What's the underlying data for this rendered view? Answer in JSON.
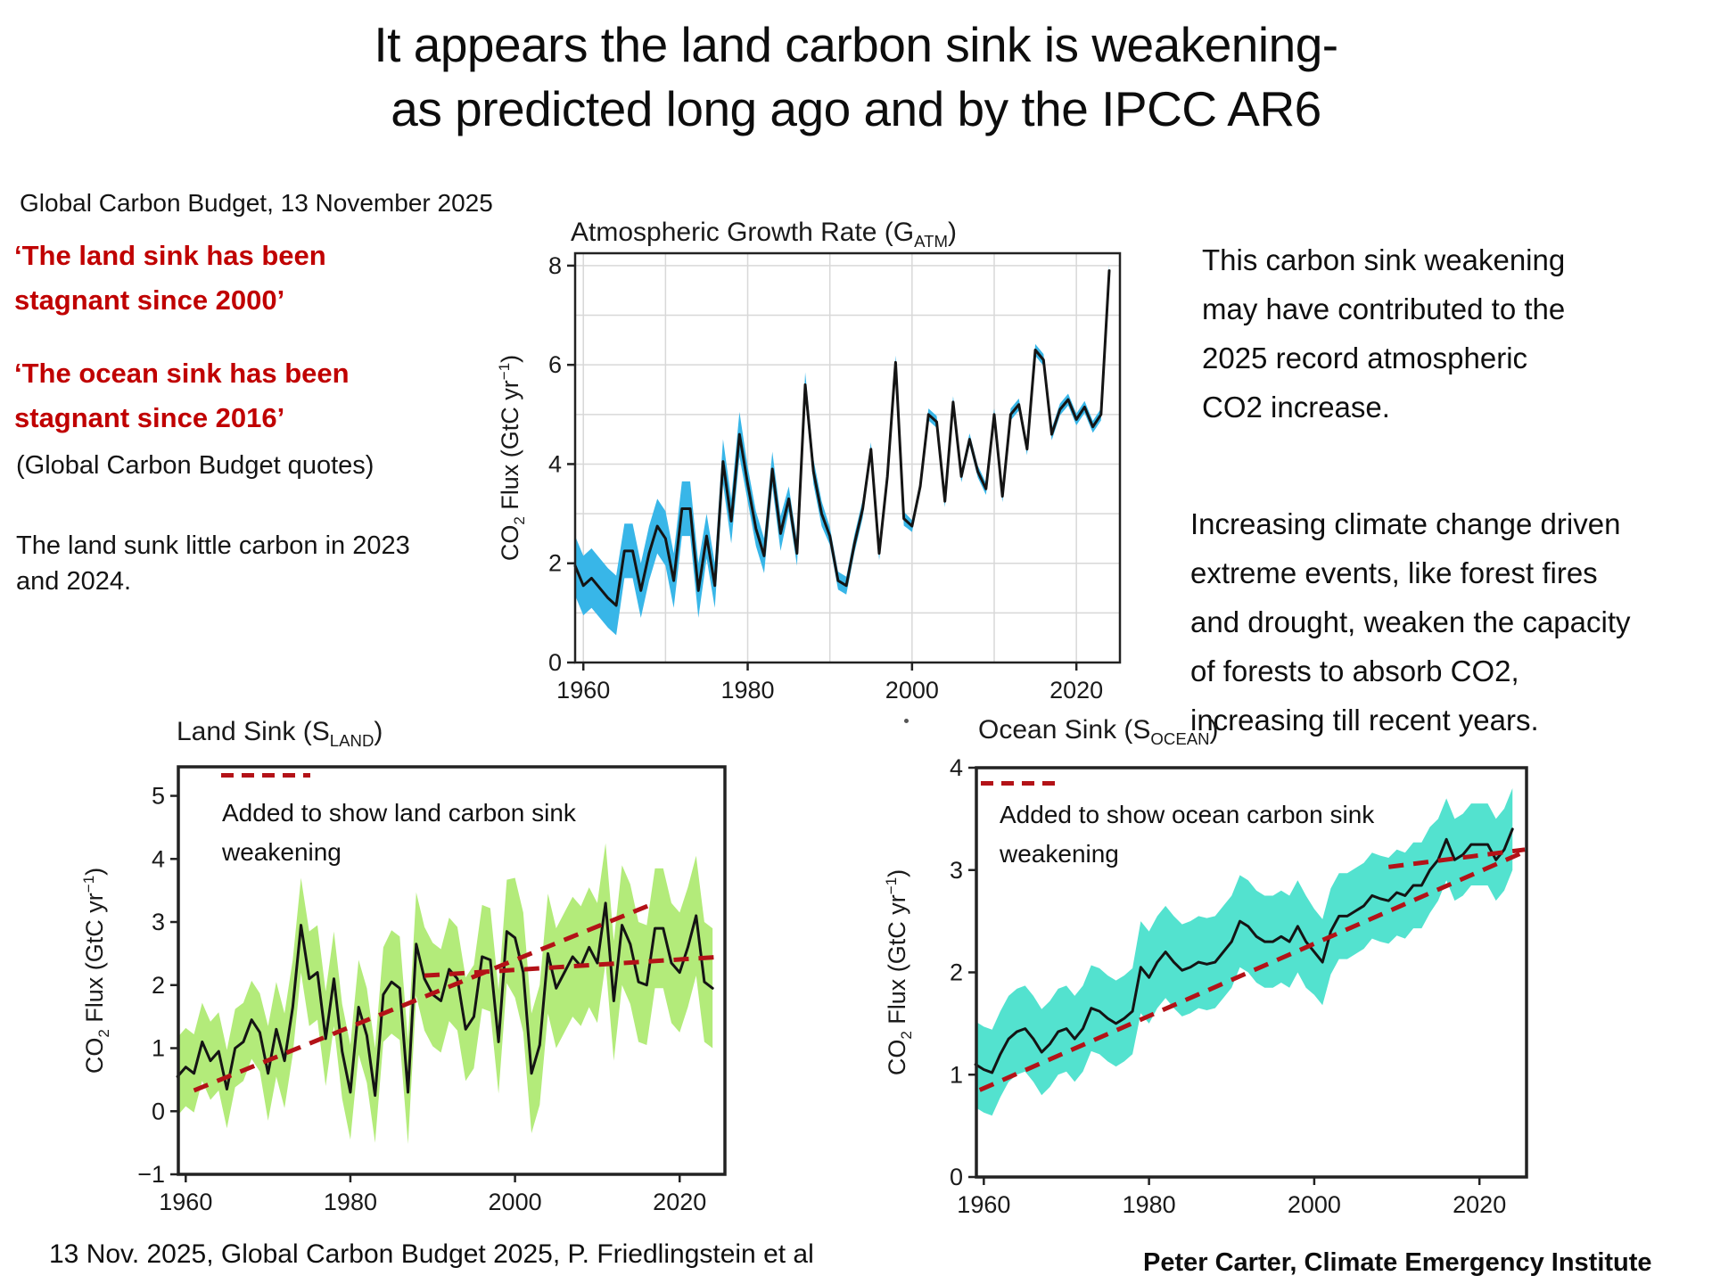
{
  "title": "It appears the land carbon sink is weakening-\nas predicted long ago and by the IPCC AR6",
  "left_column": {
    "source": "Global Carbon Budget, 13 November 2025",
    "quote_land": "‘The land sink has been\n stagnant since 2000’",
    "quote_ocean": "‘The ocean sink has been\nstagnant since 2016’",
    "quotes_note": "(Global Carbon Budget quotes)",
    "land_note": "The land sunk little carbon in 2023\nand 2024."
  },
  "right_column": {
    "para1": "This carbon sink weakening\nmay have contributed to the\n2025 record atmospheric\nCO2 increase.",
    "para2": "Increasing climate change driven\nextreme events, like forest fires\nand drought, weaken the capacity\nof forests to absorb CO2,\nincreasing till recent years."
  },
  "footer": {
    "source": "13 Nov. 2025, Global Carbon Budget 2025, P. Friedlingstein et al",
    "credit": "Peter Carter, Climate Emergency Institute"
  },
  "colors": {
    "quote_red": "#c00000",
    "trend_red": "#b31217",
    "line": "#141414",
    "gatm_band": "#38b6e8",
    "land_band": "#b3eb7a",
    "ocean_band": "#53e2cf",
    "grid": "#d8d8d8",
    "axis": "#222222"
  },
  "chart_data": [
    {
      "id": "gatm",
      "type": "line",
      "title_parts": [
        {
          "t": "Atmospheric Growth Rate (G"
        },
        {
          "t": "ATM",
          "sub": true
        },
        {
          "t": ")"
        }
      ],
      "ylabel_parts": [
        {
          "t": "CO"
        },
        {
          "t": "2",
          "sub": true
        },
        {
          "t": " Flux (GtC yr"
        },
        {
          "t": "−1",
          "sup": true
        },
        {
          "t": ")"
        }
      ],
      "x_ticks": [
        1960,
        1980,
        2000,
        2020
      ],
      "y_ticks": [
        0,
        2,
        4,
        6,
        8
      ],
      "x_range": [
        1959,
        2025.3
      ],
      "y_range": [
        0,
        8.25
      ],
      "grid": true,
      "band_color": "#38b6e8",
      "year_start": 1959,
      "values": [
        1.95,
        1.55,
        1.7,
        1.5,
        1.3,
        1.15,
        2.25,
        2.25,
        1.45,
        2.2,
        2.75,
        2.5,
        1.65,
        3.1,
        3.1,
        1.45,
        2.55,
        1.55,
        4.05,
        2.85,
        4.6,
        3.6,
        2.7,
        2.15,
        3.9,
        2.6,
        3.3,
        2.2,
        5.6,
        3.85,
        3.0,
        2.55,
        1.65,
        1.55,
        2.4,
        3.1,
        4.3,
        2.2,
        3.75,
        6.05,
        2.9,
        2.75,
        3.55,
        5.0,
        4.85,
        3.25,
        5.25,
        3.75,
        4.5,
        3.85,
        3.5,
        5.0,
        3.35,
        5.0,
        5.2,
        4.3,
        6.3,
        6.1,
        4.6,
        5.1,
        5.3,
        4.9,
        5.15,
        4.75,
        5.0,
        7.9
      ],
      "band": [
        0.6,
        0.6,
        0.6,
        0.6,
        0.6,
        0.6,
        0.55,
        0.55,
        0.55,
        0.55,
        0.55,
        0.55,
        0.55,
        0.55,
        0.55,
        0.55,
        0.45,
        0.45,
        0.45,
        0.45,
        0.45,
        0.35,
        0.35,
        0.35,
        0.35,
        0.35,
        0.25,
        0.25,
        0.25,
        0.25,
        0.25,
        0.18,
        0.18,
        0.18,
        0.18,
        0.18,
        0.14,
        0.14,
        0.14,
        0.14,
        0.14,
        0.12,
        0.12,
        0.12,
        0.12,
        0.12,
        0.12,
        0.12,
        0.12,
        0.12,
        0.12,
        0.12,
        0.12,
        0.12,
        0.12,
        0.12,
        0.12,
        0.12,
        0.12,
        0.12,
        0.12,
        0.12,
        0.12,
        0.12,
        0.12,
        0.12
      ],
      "trend_lines": [],
      "annotation": null
    },
    {
      "id": "land",
      "type": "line",
      "title_parts": [
        {
          "t": "Land Sink (S"
        },
        {
          "t": "LAND",
          "sub": true
        },
        {
          "t": ")"
        }
      ],
      "ylabel_parts": [
        {
          "t": "CO"
        },
        {
          "t": "2",
          "sub": true
        },
        {
          "t": " Flux (GtC yr"
        },
        {
          "t": "−1",
          "sup": true
        },
        {
          "t": ")"
        }
      ],
      "x_ticks": [
        1960,
        1980,
        2000,
        2020
      ],
      "y_ticks": [
        -1,
        0,
        1,
        2,
        3,
        4,
        5
      ],
      "x_range": [
        1959.1,
        2025.5
      ],
      "y_range": [
        -1,
        5.46
      ],
      "grid": false,
      "band_color": "#b3eb7a",
      "year_start": 1959,
      "values": [
        0.55,
        0.7,
        0.6,
        1.1,
        0.8,
        0.95,
        0.35,
        1.0,
        1.1,
        1.45,
        1.25,
        0.6,
        1.3,
        0.8,
        1.65,
        2.95,
        2.1,
        2.2,
        1.15,
        2.1,
        0.95,
        0.3,
        1.65,
        1.2,
        0.25,
        1.85,
        2.05,
        1.95,
        0.3,
        2.65,
        2.1,
        1.85,
        1.75,
        2.25,
        2.1,
        1.3,
        1.5,
        2.45,
        2.4,
        1.1,
        2.85,
        2.75,
        2.2,
        0.6,
        1.05,
        2.5,
        1.95,
        2.2,
        2.45,
        2.3,
        2.6,
        2.35,
        3.3,
        1.75,
        2.95,
        2.65,
        2.05,
        2.0,
        2.9,
        2.9,
        2.35,
        2.2,
        2.6,
        3.1,
        2.05,
        1.95
      ],
      "band": [
        0.62,
        0.62,
        0.62,
        0.62,
        0.62,
        0.62,
        0.62,
        0.62,
        0.62,
        0.62,
        0.62,
        0.75,
        0.75,
        0.75,
        0.75,
        0.75,
        0.75,
        0.75,
        0.75,
        0.75,
        0.75,
        0.75,
        0.75,
        0.75,
        0.75,
        0.75,
        0.82,
        0.82,
        0.82,
        0.82,
        0.82,
        0.82,
        0.82,
        0.82,
        0.82,
        0.82,
        0.82,
        0.82,
        0.82,
        0.82,
        0.82,
        0.95,
        0.95,
        0.95,
        0.95,
        0.95,
        0.95,
        0.95,
        0.95,
        0.95,
        0.95,
        0.95,
        0.95,
        0.95,
        0.95,
        0.95,
        0.95,
        0.95,
        0.95,
        0.95,
        0.95,
        0.95,
        0.95,
        0.95,
        0.95,
        0.95
      ],
      "trend_lines": [
        {
          "from": [
            1961,
            0.33
          ],
          "to": [
            2017,
            3.3
          ]
        },
        {
          "from": [
            1989,
            2.15
          ],
          "to": [
            2025.3,
            2.45
          ]
        }
      ],
      "annotation": "Added to show land carbon sink\nweakening"
    },
    {
      "id": "ocean",
      "type": "line",
      "title_parts": [
        {
          "t": "Ocean Sink (S"
        },
        {
          "t": "OCEAN",
          "sub": true
        },
        {
          "t": ")"
        }
      ],
      "ylabel_parts": [
        {
          "t": "CO"
        },
        {
          "t": "2",
          "sub": true
        },
        {
          "t": " Flux (GtC yr"
        },
        {
          "t": "−1",
          "sup": true
        },
        {
          "t": ")"
        }
      ],
      "x_ticks": [
        1960,
        1980,
        2000,
        2020
      ],
      "y_ticks": [
        0,
        1,
        2,
        3,
        4
      ],
      "x_range": [
        1959.1,
        2025.7
      ],
      "y_range": [
        0,
        4.0
      ],
      "grid": false,
      "band_color": "#53e2cf",
      "year_start": 1959,
      "values": [
        1.1,
        1.05,
        1.02,
        1.2,
        1.35,
        1.42,
        1.45,
        1.35,
        1.22,
        1.3,
        1.42,
        1.45,
        1.35,
        1.45,
        1.65,
        1.62,
        1.55,
        1.5,
        1.55,
        1.62,
        2.05,
        1.95,
        2.1,
        2.2,
        2.1,
        2.02,
        2.05,
        2.1,
        2.08,
        2.1,
        2.2,
        2.3,
        2.5,
        2.45,
        2.35,
        2.3,
        2.3,
        2.35,
        2.3,
        2.45,
        2.3,
        2.2,
        2.1,
        2.4,
        2.55,
        2.55,
        2.6,
        2.65,
        2.75,
        2.72,
        2.7,
        2.78,
        2.75,
        2.85,
        2.85,
        3.0,
        3.1,
        3.3,
        3.1,
        3.15,
        3.25,
        3.25,
        3.25,
        3.1,
        3.2,
        3.4
      ],
      "band": [
        0.42,
        0.42,
        0.42,
        0.42,
        0.42,
        0.42,
        0.42,
        0.42,
        0.42,
        0.42,
        0.42,
        0.42,
        0.42,
        0.42,
        0.42,
        0.42,
        0.42,
        0.42,
        0.42,
        0.42,
        0.45,
        0.45,
        0.45,
        0.45,
        0.45,
        0.45,
        0.45,
        0.45,
        0.45,
        0.45,
        0.45,
        0.45,
        0.45,
        0.45,
        0.45,
        0.45,
        0.45,
        0.45,
        0.45,
        0.45,
        0.45,
        0.42,
        0.42,
        0.42,
        0.42,
        0.42,
        0.42,
        0.42,
        0.42,
        0.42,
        0.42,
        0.42,
        0.42,
        0.42,
        0.42,
        0.42,
        0.4,
        0.4,
        0.4,
        0.4,
        0.4,
        0.4,
        0.4,
        0.4,
        0.4,
        0.4
      ],
      "trend_lines": [
        {
          "from": [
            1959.5,
            0.85
          ],
          "to": [
            2025.5,
            3.18
          ]
        },
        {
          "from": [
            2009,
            3.03
          ],
          "to": [
            2025.5,
            3.2
          ]
        }
      ],
      "annotation": "Added to show ocean carbon sink\nweakening"
    }
  ]
}
